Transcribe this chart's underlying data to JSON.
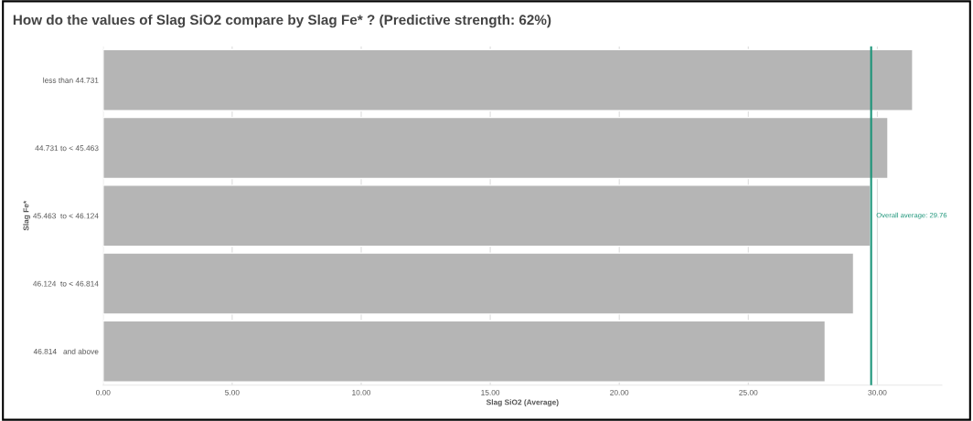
{
  "chart_data": {
    "type": "bar",
    "orientation": "horizontal",
    "title": "How do the values of Slag SiO2 compare by Slag Fe* ? (Predictive strength: 62%)",
    "xlabel": "Slag SiO2 (Average)",
    "ylabel": "Slag Fe*",
    "categories": [
      "less than 44.731",
      "44.731 to < 45.463",
      "45.463  to < 46.124",
      "46.124  to < 46.814",
      "46.814   and above"
    ],
    "values": [
      31.37,
      30.41,
      29.73,
      29.08,
      27.98
    ],
    "color": "#b5b5b5",
    "xlim": [
      0,
      32.5
    ],
    "xticks": [
      {
        "value": 0,
        "label": "0.00"
      },
      {
        "value": 5,
        "label": "5.00"
      },
      {
        "value": 10,
        "label": "10.00"
      },
      {
        "value": 15,
        "label": "15.00"
      },
      {
        "value": 20,
        "label": "20.00"
      },
      {
        "value": 25,
        "label": "25.00"
      },
      {
        "value": 30,
        "label": "30.00"
      }
    ],
    "grid": "x",
    "ref_lines": [
      {
        "axis": "x",
        "value": 29.76,
        "label": "Overall average: 29.76",
        "color": "#1a9478"
      }
    ]
  }
}
